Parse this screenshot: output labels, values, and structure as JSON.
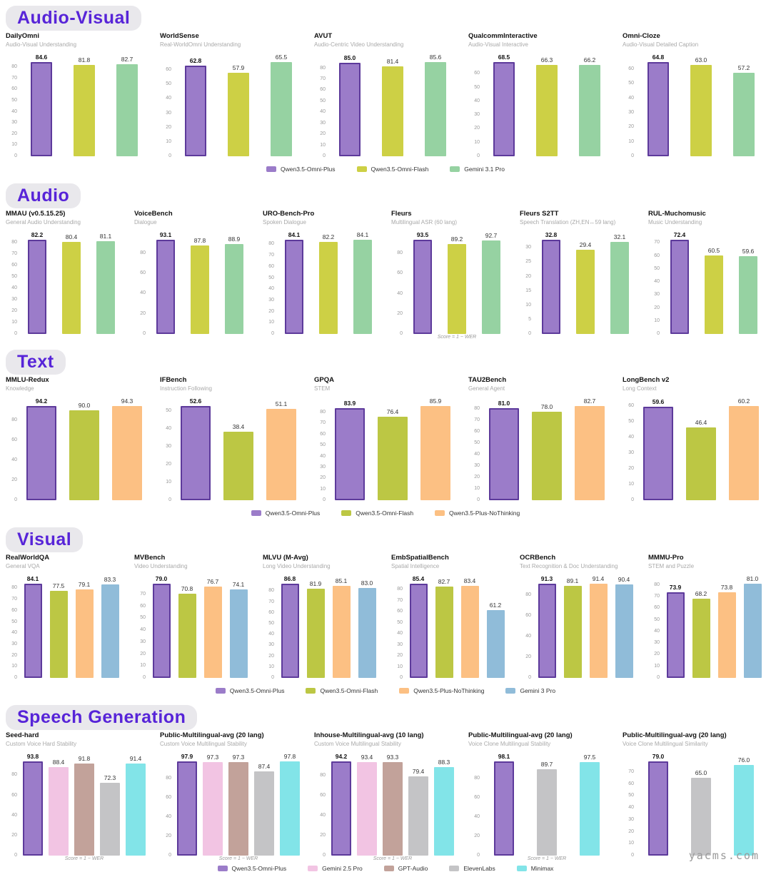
{
  "page": {
    "watermark": "yacms.com"
  },
  "chart_data": {
    "type": "bar",
    "sections": [
      {
        "title": "Audio-Visual",
        "show_legend": true,
        "series": [
          {
            "name": "Qwen3.5-Omni-Plus",
            "color": "#9b7cc9",
            "edge": "#5d3a9b"
          },
          {
            "name": "Qwen3.5-Omni-Flash",
            "color": "#cdd045"
          },
          {
            "name": "Gemini 3.1 Pro",
            "color": "#96d2a2"
          }
        ],
        "charts": [
          {
            "title": "DailyOmni",
            "subtitle": "Audio-Visual Understanding",
            "yticks": [
              0,
              10,
              20,
              30,
              40,
              50,
              60,
              70,
              80
            ],
            "values": [
              84.6,
              81.8,
              82.7
            ]
          },
          {
            "title": "WorldSense",
            "subtitle": "Real-WorldOmni Understanding",
            "yticks": [
              0,
              10,
              20,
              30,
              40,
              50,
              60
            ],
            "values": [
              62.8,
              57.9,
              65.5
            ]
          },
          {
            "title": "AVUT",
            "subtitle": "Audio-Centric Video Understanding",
            "yticks": [
              0,
              10,
              20,
              30,
              40,
              50,
              60,
              70,
              80
            ],
            "values": [
              85.0,
              81.4,
              85.6
            ]
          },
          {
            "title": "QualcommInteractive",
            "subtitle": "Audio-Visual Interactive",
            "yticks": [
              0,
              10,
              20,
              30,
              40,
              50,
              60
            ],
            "values": [
              68.5,
              66.3,
              66.2
            ]
          },
          {
            "title": "Omni-Cloze",
            "subtitle": "Audio-Visual Detailed Caption",
            "yticks": [
              0,
              10,
              20,
              30,
              40,
              50,
              60
            ],
            "values": [
              64.8,
              63.0,
              57.2
            ]
          }
        ]
      },
      {
        "title": "Audio",
        "show_legend": false,
        "series": [
          {
            "name": "Qwen3.5-Omni-Plus",
            "color": "#9b7cc9",
            "edge": "#5d3a9b"
          },
          {
            "name": "Qwen3.5-Omni-Flash",
            "color": "#cdd045"
          },
          {
            "name": "Gemini 3.1 Pro",
            "color": "#96d2a2"
          }
        ],
        "charts": [
          {
            "title": "MMAU (v0.5.15.25)",
            "subtitle": "General Audio Understanding",
            "yticks": [
              0,
              10,
              20,
              30,
              40,
              50,
              60,
              70,
              80
            ],
            "values": [
              82.2,
              80.4,
              81.1
            ]
          },
          {
            "title": "VoiceBench",
            "subtitle": "Dialogue",
            "yticks": [
              0,
              20,
              40,
              60,
              80
            ],
            "values": [
              93.1,
              87.8,
              88.9
            ]
          },
          {
            "title": "URO-Bench-Pro",
            "subtitle": "Spoken Dialogue",
            "yticks": [
              0,
              10,
              20,
              30,
              40,
              50,
              60,
              70,
              80
            ],
            "values": [
              84.1,
              82.2,
              84.1
            ]
          },
          {
            "title": "Fleurs",
            "subtitle": "Multilingual ASR (60 lang)",
            "yticks": [
              0,
              20,
              40,
              60,
              80
            ],
            "values": [
              93.5,
              89.2,
              92.7
            ],
            "footnote": "Score = 1 − WER"
          },
          {
            "title": "Fleurs S2TT",
            "subtitle": "Speech Translation (ZH,EN↔59 lang)",
            "yticks": [
              0,
              5,
              10,
              15,
              20,
              25,
              30
            ],
            "values": [
              32.8,
              29.4,
              32.1
            ]
          },
          {
            "title": "RUL-Muchomusic",
            "subtitle": "Music Understanding",
            "yticks": [
              0,
              10,
              20,
              30,
              40,
              50,
              60,
              70
            ],
            "values": [
              72.4,
              60.5,
              59.6
            ]
          }
        ]
      },
      {
        "title": "Text",
        "show_legend": true,
        "series": [
          {
            "name": "Qwen3.5-Omni-Plus",
            "color": "#9b7cc9",
            "edge": "#5d3a9b"
          },
          {
            "name": "Qwen3.5-Omni-Flash",
            "color": "#bcc744"
          },
          {
            "name": "Qwen3.5-Plus-NoThinking",
            "color": "#fcc083"
          }
        ],
        "charts": [
          {
            "title": "MMLU-Redux",
            "subtitle": "Knowledge",
            "yticks": [
              0,
              20,
              40,
              60,
              80
            ],
            "values": [
              94.2,
              90.0,
              94.3
            ]
          },
          {
            "title": "IFBench",
            "subtitle": "Instruction Following",
            "yticks": [
              0,
              10,
              20,
              30,
              40,
              50
            ],
            "values": [
              52.6,
              38.4,
              51.1
            ]
          },
          {
            "title": "GPQA",
            "subtitle": "STEM",
            "yticks": [
              0,
              10,
              20,
              30,
              40,
              50,
              60,
              70,
              80
            ],
            "values": [
              83.9,
              76.4,
              85.9
            ]
          },
          {
            "title": "TAU2Bench",
            "subtitle": "General Agent",
            "yticks": [
              0,
              10,
              20,
              30,
              40,
              50,
              60,
              70,
              80
            ],
            "values": [
              81.0,
              78.0,
              82.7
            ]
          },
          {
            "title": "LongBench v2",
            "subtitle": "Long Context",
            "yticks": [
              0,
              10,
              20,
              30,
              40,
              50,
              60
            ],
            "values": [
              59.6,
              46.4,
              60.2
            ]
          }
        ]
      },
      {
        "title": "Visual",
        "show_legend": true,
        "series": [
          {
            "name": "Qwen3.5-Omni-Plus",
            "color": "#9b7cc9",
            "edge": "#5d3a9b"
          },
          {
            "name": "Qwen3.5-Omni-Flash",
            "color": "#bcc744"
          },
          {
            "name": "Qwen3.5-Plus-NoThinking",
            "color": "#fcc083"
          },
          {
            "name": "Gemini 3 Pro",
            "color": "#90bcd9"
          }
        ],
        "charts": [
          {
            "title": "RealWorldQA",
            "subtitle": "General VQA",
            "yticks": [
              0,
              10,
              20,
              30,
              40,
              50,
              60,
              70,
              80
            ],
            "values": [
              84.1,
              77.5,
              79.1,
              83.3
            ]
          },
          {
            "title": "MVBench",
            "subtitle": "Video Understanding",
            "yticks": [
              0,
              10,
              20,
              30,
              40,
              50,
              60,
              70
            ],
            "values": [
              79.0,
              70.8,
              76.7,
              74.1
            ]
          },
          {
            "title": "MLVU (M-Avg)",
            "subtitle": "Long Video Understanding",
            "yticks": [
              0,
              10,
              20,
              30,
              40,
              50,
              60,
              70,
              80
            ],
            "values": [
              86.8,
              81.9,
              85.1,
              83.0
            ]
          },
          {
            "title": "EmbSpatialBench",
            "subtitle": "Spatial Intelligence",
            "yticks": [
              0,
              10,
              20,
              30,
              40,
              50,
              60,
              70,
              80
            ],
            "values": [
              85.4,
              82.7,
              83.4,
              61.2
            ]
          },
          {
            "title": "OCRBench",
            "subtitle": "Text Recognition & Doc Understanding",
            "yticks": [
              0,
              20,
              40,
              60,
              80
            ],
            "values": [
              91.3,
              89.1,
              91.4,
              90.4
            ]
          },
          {
            "title": "MMMU-Pro",
            "subtitle": "STEM and Puzzle",
            "yticks": [
              0,
              10,
              20,
              30,
              40,
              50,
              60,
              70,
              80
            ],
            "values": [
              73.9,
              68.2,
              73.8,
              81.0
            ]
          }
        ]
      },
      {
        "title": "Speech Generation",
        "show_legend": true,
        "series": [
          {
            "name": "Qwen3.5-Omni-Plus",
            "color": "#9b7cc9",
            "edge": "#5d3a9b"
          },
          {
            "name": "Gemini 2.5 Pro",
            "color": "#f2c4e3"
          },
          {
            "name": "GPT-Audio",
            "color": "#c2a29a"
          },
          {
            "name": "ElevenLabs",
            "color": "#c4c4c6"
          },
          {
            "name": "Minimax",
            "color": "#82e4e8"
          }
        ],
        "charts": [
          {
            "title": "Seed-hard",
            "subtitle": "Custom Voice Hard Stability",
            "yticks": [
              0,
              20,
              40,
              60,
              80
            ],
            "values": [
              93.8,
              88.4,
              91.8,
              72.3,
              91.4
            ],
            "footnote": "Score = 1 − WER"
          },
          {
            "title": "Public-Multilingual-avg (20 lang)",
            "subtitle": "Custom Voice Multilingual Stability",
            "yticks": [
              0,
              20,
              40,
              60,
              80
            ],
            "values": [
              97.9,
              97.3,
              97.3,
              87.4,
              97.8
            ],
            "footnote": "Score = 1 − WER"
          },
          {
            "title": "Inhouse-Multilingual-avg (10 lang)",
            "subtitle": "Custom Voice Multilingual Stability",
            "yticks": [
              0,
              20,
              40,
              60,
              80
            ],
            "values": [
              94.2,
              93.4,
              93.3,
              79.4,
              88.3
            ],
            "footnote": "Score = 1 − WER"
          },
          {
            "title": "Public-Multilingual-avg (20 lang)",
            "subtitle": "Voice Clone Multilingual Stability",
            "yticks": [
              0,
              20,
              40,
              60,
              80
            ],
            "values": [
              98.1,
              89.7,
              97.5
            ],
            "series_idx": [
              0,
              3,
              4
            ],
            "footnote": "Score = 1 − WER"
          },
          {
            "title": "Public-Multilingual-avg (20 lang)",
            "subtitle": "Voice Clone Multilingual Similarity",
            "yticks": [
              0,
              10,
              20,
              30,
              40,
              50,
              60,
              70
            ],
            "values": [
              79.0,
              65.0,
              76.0
            ],
            "series_idx": [
              0,
              3,
              4
            ]
          }
        ]
      }
    ]
  }
}
